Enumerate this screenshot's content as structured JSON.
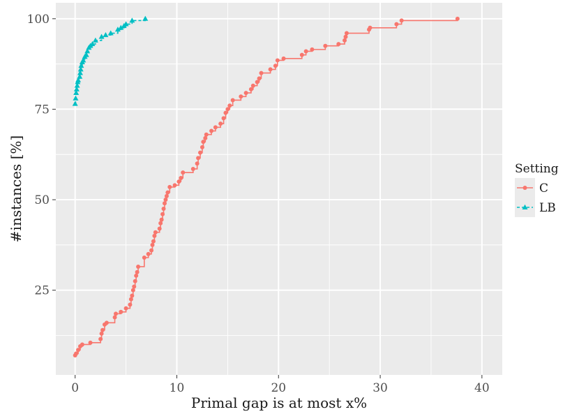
{
  "chart_data": {
    "type": "line",
    "title": "",
    "xlabel": "Primal gap is at most x%",
    "ylabel": "#instances [%]",
    "xlim": [
      -1.9,
      42.0
    ],
    "ylim": [
      1.6,
      104.4
    ],
    "x_ticks": [
      0,
      10,
      20,
      30,
      40
    ],
    "y_ticks": [
      25,
      50,
      75,
      100
    ],
    "x_tick_labels": [
      "0",
      "10",
      "20",
      "30",
      "40"
    ],
    "y_tick_labels": [
      "25",
      "50",
      "75",
      "100"
    ],
    "grid": true,
    "step": true,
    "legend": {
      "title": "Setting",
      "position": "right"
    },
    "colors": {
      "C": "#F8766D",
      "LB": "#00BFC4",
      "panel": "#EBEBEB",
      "grid": "#FFFFFF"
    },
    "series": [
      {
        "name": "C",
        "marker": "circle",
        "line_style": "solid",
        "points": [
          [
            0,
            7
          ],
          [
            0.1,
            7.5
          ],
          [
            0.3,
            8.5
          ],
          [
            0.5,
            9.5
          ],
          [
            0.7,
            10
          ],
          [
            1.5,
            10.5
          ],
          [
            2.5,
            11.5
          ],
          [
            2.6,
            13
          ],
          [
            2.7,
            14
          ],
          [
            2.9,
            15.5
          ],
          [
            3.1,
            16
          ],
          [
            3.9,
            17.5
          ],
          [
            4.0,
            18.5
          ],
          [
            4.5,
            19
          ],
          [
            5.0,
            20
          ],
          [
            5.4,
            21
          ],
          [
            5.5,
            22.5
          ],
          [
            5.6,
            23.5
          ],
          [
            5.7,
            25
          ],
          [
            5.8,
            26
          ],
          [
            5.9,
            27.5
          ],
          [
            6.0,
            29
          ],
          [
            6.1,
            30
          ],
          [
            6.2,
            31.5
          ],
          [
            6.8,
            34
          ],
          [
            7.2,
            35
          ],
          [
            7.5,
            36
          ],
          [
            7.6,
            37.5
          ],
          [
            7.7,
            38.5
          ],
          [
            7.8,
            40
          ],
          [
            7.9,
            41
          ],
          [
            8.3,
            42
          ],
          [
            8.4,
            43.5
          ],
          [
            8.5,
            44.5
          ],
          [
            8.6,
            46
          ],
          [
            8.7,
            47.5
          ],
          [
            8.8,
            49
          ],
          [
            8.9,
            50
          ],
          [
            9.0,
            51
          ],
          [
            9.1,
            52
          ],
          [
            9.3,
            53.5
          ],
          [
            9.8,
            54
          ],
          [
            10.2,
            55
          ],
          [
            10.4,
            56
          ],
          [
            10.6,
            57.5
          ],
          [
            11.6,
            58.5
          ],
          [
            12.0,
            60
          ],
          [
            12.1,
            61.5
          ],
          [
            12.3,
            63
          ],
          [
            12.5,
            64.5
          ],
          [
            12.6,
            66
          ],
          [
            12.8,
            67
          ],
          [
            12.9,
            68
          ],
          [
            13.4,
            69
          ],
          [
            13.8,
            70
          ],
          [
            14.3,
            71
          ],
          [
            14.6,
            72.5
          ],
          [
            14.8,
            74
          ],
          [
            15.0,
            75
          ],
          [
            15.2,
            76
          ],
          [
            15.5,
            77.5
          ],
          [
            16.3,
            78.5
          ],
          [
            16.8,
            79.5
          ],
          [
            17.3,
            80.5
          ],
          [
            17.5,
            81.5
          ],
          [
            17.9,
            82.5
          ],
          [
            18.1,
            83.5
          ],
          [
            18.3,
            85
          ],
          [
            19.2,
            86
          ],
          [
            19.7,
            87
          ],
          [
            19.9,
            88.5
          ],
          [
            20.5,
            89
          ],
          [
            22.3,
            90
          ],
          [
            22.7,
            91
          ],
          [
            23.3,
            91.5
          ],
          [
            24.6,
            92.5
          ],
          [
            25.9,
            93
          ],
          [
            26.5,
            94
          ],
          [
            26.6,
            95
          ],
          [
            26.7,
            96
          ],
          [
            28.9,
            97
          ],
          [
            29.0,
            97.5
          ],
          [
            31.6,
            98.5
          ],
          [
            32.1,
            99.5
          ],
          [
            37.6,
            100
          ]
        ]
      },
      {
        "name": "LB",
        "marker": "triangle",
        "line_style": "dashed",
        "points": [
          [
            0,
            76.5
          ],
          [
            0.05,
            78
          ],
          [
            0.1,
            79.5
          ],
          [
            0.15,
            80.5
          ],
          [
            0.2,
            81.5
          ],
          [
            0.25,
            82.5
          ],
          [
            0.3,
            83
          ],
          [
            0.45,
            84
          ],
          [
            0.5,
            85
          ],
          [
            0.55,
            86
          ],
          [
            0.6,
            87
          ],
          [
            0.7,
            88
          ],
          [
            0.8,
            88.5
          ],
          [
            0.95,
            89.5
          ],
          [
            1.1,
            90
          ],
          [
            1.2,
            91
          ],
          [
            1.35,
            92
          ],
          [
            1.5,
            92.5
          ],
          [
            1.7,
            93
          ],
          [
            2.0,
            94
          ],
          [
            2.6,
            95
          ],
          [
            3.0,
            95.5
          ],
          [
            3.5,
            96
          ],
          [
            4.2,
            97
          ],
          [
            4.5,
            97.5
          ],
          [
            4.8,
            98
          ],
          [
            5.0,
            98.5
          ],
          [
            5.6,
            99.5
          ],
          [
            6.9,
            100
          ]
        ]
      }
    ]
  }
}
